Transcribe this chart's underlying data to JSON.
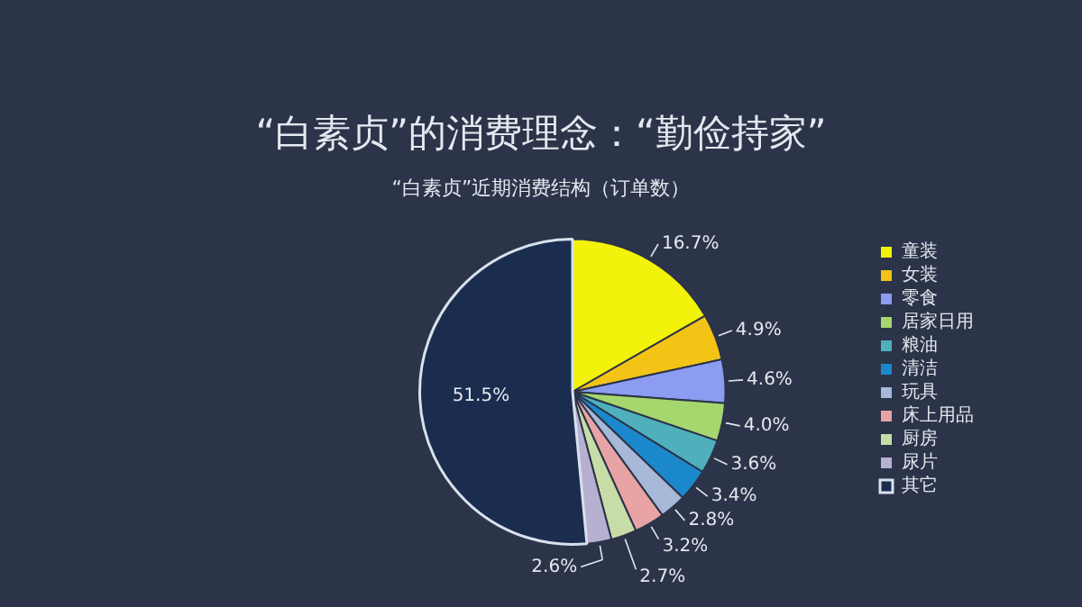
{
  "chart_data": {
    "type": "pie",
    "title": "“白素贞”的消费理念：“勤俭持家”",
    "subtitle": "“白素贞”近期消费结构（订单数）",
    "categories": [
      "童装",
      "女装",
      "零食",
      "居家日用",
      "粮油",
      "清洁",
      "玩具",
      "床上用品",
      "厨房",
      "尿片",
      "其它"
    ],
    "values": [
      16.7,
      4.9,
      4.6,
      4.0,
      3.6,
      3.4,
      2.8,
      3.2,
      2.7,
      2.6,
      51.5
    ],
    "colors": [
      "#f2f20a",
      "#f3c316",
      "#8c9cf0",
      "#a6d66e",
      "#4fb0bc",
      "#1c88cc",
      "#a8b8d8",
      "#e8a4a4",
      "#c8dca8",
      "#b8b0d0",
      "#1b2d4f"
    ],
    "value_labels": [
      "16.7%",
      "4.9%",
      "4.6%",
      "4.0%",
      "3.6%",
      "3.4%",
      "2.8%",
      "3.2%",
      "2.7%",
      "2.6%",
      "51.5%"
    ],
    "legend": "right"
  }
}
